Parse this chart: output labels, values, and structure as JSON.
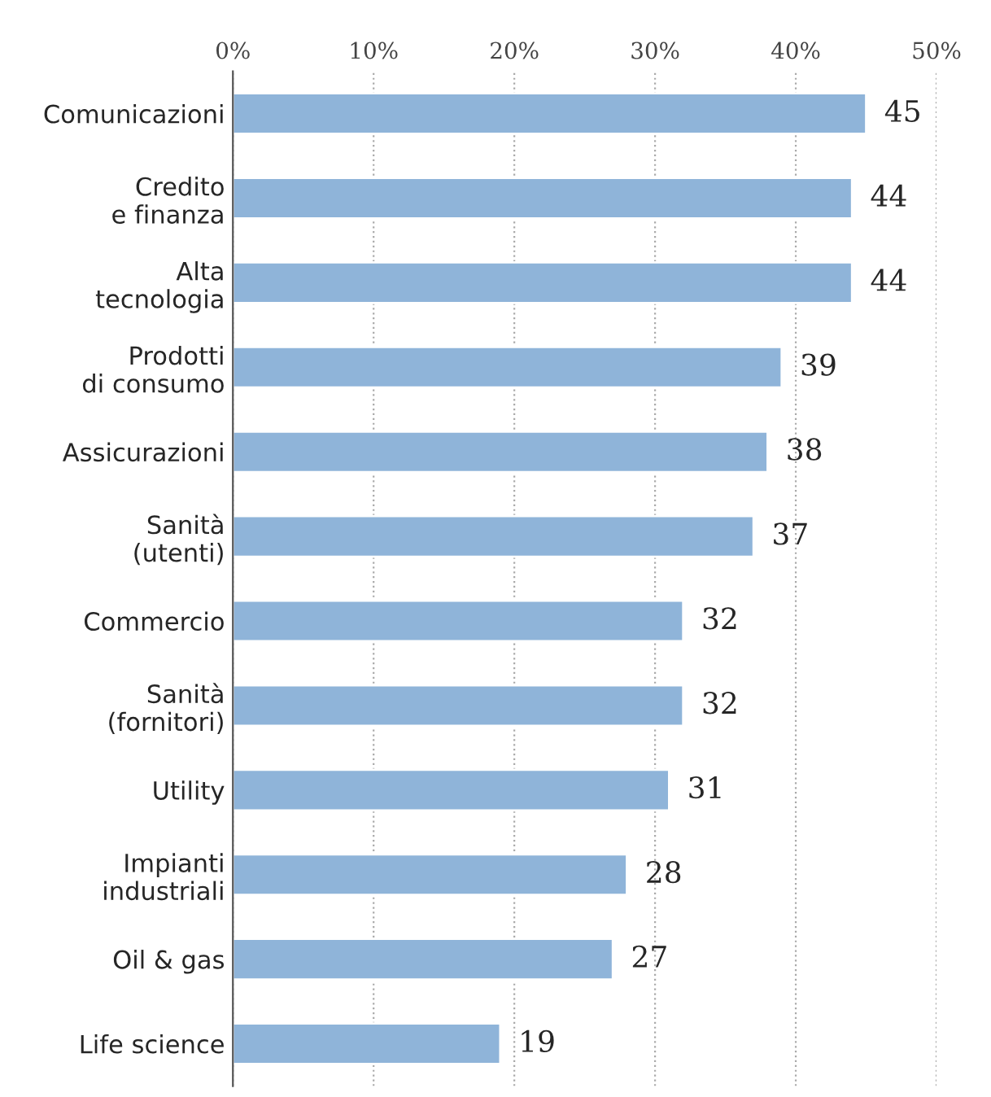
{
  "chart_data": {
    "type": "bar",
    "orientation": "horizontal",
    "categories": [
      "Comunicazioni",
      "Credito\ne finanza",
      "Alta\ntecnologia",
      "Prodotti\ndi consumo",
      "Assicurazioni",
      "Sanità\n(utenti)",
      "Commercio",
      "Sanità\n(fornitori)",
      "Utility",
      "Impianti\nindustriali",
      "Oil & gas",
      "Life science"
    ],
    "values": [
      45,
      44,
      44,
      39,
      38,
      37,
      32,
      32,
      31,
      28,
      27,
      19
    ],
    "color": "#8fb4d9",
    "xlim": [
      0,
      50
    ],
    "xticks": [
      {
        "value": 0,
        "label": "0%"
      },
      {
        "value": 10,
        "label": "10%"
      },
      {
        "value": 20,
        "label": "20%"
      },
      {
        "value": 30,
        "label": "30%"
      },
      {
        "value": 40,
        "label": "40%"
      },
      {
        "value": 50,
        "label": "50%"
      }
    ],
    "grid": "x",
    "data_labels": true
  }
}
